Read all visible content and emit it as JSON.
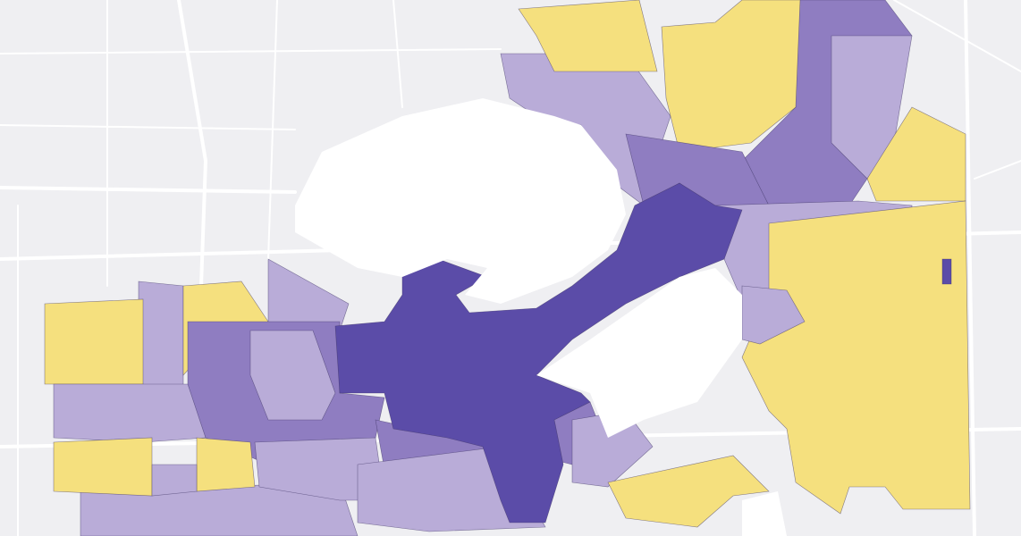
{
  "map": {
    "background": "#efeff2",
    "road_color": "#ffffff",
    "water_color": "#ffffff",
    "palette": [
      "#f5e07e",
      "#b9acd8",
      "#8f7dc1",
      "#5b4ca8"
    ]
  }
}
